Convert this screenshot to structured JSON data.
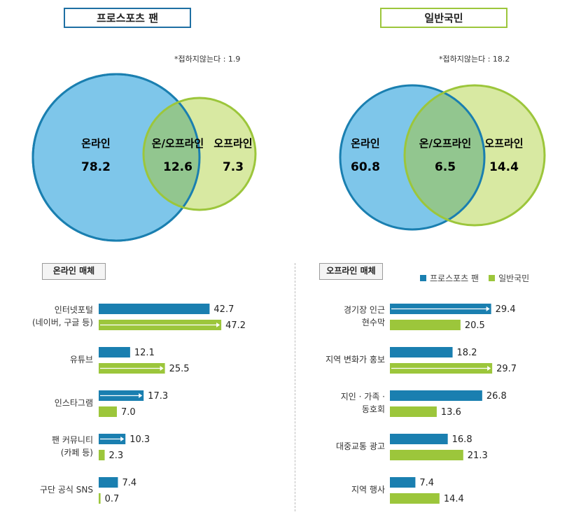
{
  "venn": [
    {
      "title": "프로스포츠 팬",
      "note": "*접하지않는다 : 1.9",
      "online_label": "온라인",
      "online_value": "78.2",
      "both_label": "온/오프라인",
      "both_value": "12.6",
      "offline_label": "오프라인",
      "offline_value": "7.3"
    },
    {
      "title": "일반국민",
      "note": "*접하지않는다 : 18.2",
      "online_label": "온라인",
      "online_value": "60.8",
      "both_label": "온/오프라인",
      "both_value": "6.5",
      "offline_label": "오프라인",
      "offline_value": "14.4"
    }
  ],
  "online_section": {
    "title": "온라인 매체"
  },
  "offline_section": {
    "title": "오프라인 매체"
  },
  "legend": [
    "프로스포츠 팬",
    "일반국민"
  ],
  "colors": {
    "fan": "#1a7fb0",
    "general": "#9cc63b",
    "online_circle": "#7ec6ea",
    "offline_circle": "#d8e9a2",
    "overlap": "#92c68f"
  },
  "chart_data": [
    {
      "type": "bar",
      "title": "온라인 매체",
      "categories": [
        [
          "인터넷포털",
          "(네이버, 구글 등)"
        ],
        [
          "유튜브"
        ],
        [
          "인스타그램"
        ],
        [
          "팬 커뮤니티",
          "(카페 등)"
        ],
        [
          "구단 공식 SNS"
        ]
      ],
      "series": [
        {
          "name": "프로스포츠 팬",
          "values": [
            42.7,
            12.1,
            17.3,
            10.3,
            7.4
          ]
        },
        {
          "name": "일반국민",
          "values": [
            47.2,
            25.5,
            7.0,
            2.3,
            0.7
          ]
        }
      ],
      "value_labels": [
        [
          "42.7",
          "12.1",
          "17.3",
          "10.3",
          "7.4"
        ],
        [
          "47.2",
          "25.5",
          "7.0",
          "2.3",
          "0.7"
        ]
      ],
      "arrows": [
        [
          false,
          false,
          true,
          true,
          false
        ],
        [
          true,
          true,
          false,
          false,
          false
        ]
      ]
    },
    {
      "type": "bar",
      "title": "오프라인 매체",
      "categories": [
        [
          "경기장 인근",
          "현수막"
        ],
        [
          "지역 변화가 홍보"
        ],
        [
          "지인 · 가족 ·",
          "동호회"
        ],
        [
          "대중교통 광고"
        ],
        [
          "지역 행사"
        ]
      ],
      "series": [
        {
          "name": "프로스포츠 팬",
          "values": [
            29.4,
            18.2,
            26.8,
            16.8,
            7.4
          ]
        },
        {
          "name": "일반국민",
          "values": [
            20.5,
            29.7,
            13.6,
            21.3,
            14.4
          ]
        }
      ],
      "value_labels": [
        [
          "29.4",
          "18.2",
          "26.8",
          "16.8",
          "7.4"
        ],
        [
          "20.5",
          "29.7",
          "13.6",
          "21.3",
          "14.4"
        ]
      ],
      "arrows": [
        [
          true,
          false,
          false,
          false,
          false
        ],
        [
          false,
          true,
          false,
          false,
          false
        ]
      ]
    }
  ]
}
